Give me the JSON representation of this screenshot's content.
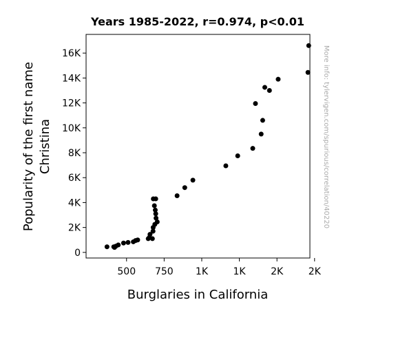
{
  "chart_data": {
    "type": "scatter",
    "title": "Years 1985-2022, r=0.974, p<0.01",
    "xlabel": "Burglaries in California",
    "ylabel_lines": [
      "Popularity of the first name",
      "Christina"
    ],
    "side_note": "More info: tylervigen.com/spurious/correlation/40220",
    "xlim": [
      231,
      1719
    ],
    "ylim": [
      -450,
      17500
    ],
    "x_ticks": [
      {
        "value": 500,
        "label": "500"
      },
      {
        "value": 750,
        "label": "750"
      },
      {
        "value": 1000,
        "label": "1K"
      },
      {
        "value": 1250,
        "label": "1K"
      },
      {
        "value": 1500,
        "label": "2K"
      },
      {
        "value": 1750,
        "label": "2K"
      }
    ],
    "y_ticks": [
      {
        "value": 0,
        "label": "0"
      },
      {
        "value": 2000,
        "label": "2K"
      },
      {
        "value": 4000,
        "label": "4K"
      },
      {
        "value": 6000,
        "label": "6K"
      },
      {
        "value": 8000,
        "label": "8K"
      },
      {
        "value": 10000,
        "label": "10K"
      },
      {
        "value": 12000,
        "label": "12K"
      },
      {
        "value": 14000,
        "label": "14K"
      },
      {
        "value": 16000,
        "label": "16K"
      }
    ],
    "points": [
      {
        "x": 1711,
        "y": 16600
      },
      {
        "x": 1706,
        "y": 14450
      },
      {
        "x": 1508,
        "y": 13900
      },
      {
        "x": 1419,
        "y": 13250
      },
      {
        "x": 1450,
        "y": 13000
      },
      {
        "x": 1357,
        "y": 11950
      },
      {
        "x": 1405,
        "y": 10600
      },
      {
        "x": 1395,
        "y": 9500
      },
      {
        "x": 1339,
        "y": 8350
      },
      {
        "x": 1239,
        "y": 7750
      },
      {
        "x": 1160,
        "y": 6950
      },
      {
        "x": 941,
        "y": 5800
      },
      {
        "x": 887,
        "y": 5200
      },
      {
        "x": 836,
        "y": 4550
      },
      {
        "x": 694,
        "y": 4300
      },
      {
        "x": 678,
        "y": 4300
      },
      {
        "x": 685,
        "y": 3750
      },
      {
        "x": 691,
        "y": 3400
      },
      {
        "x": 694,
        "y": 3100
      },
      {
        "x": 696,
        "y": 2750
      },
      {
        "x": 704,
        "y": 2450
      },
      {
        "x": 688,
        "y": 2250
      },
      {
        "x": 677,
        "y": 2000
      },
      {
        "x": 676,
        "y": 1700
      },
      {
        "x": 656,
        "y": 1450
      },
      {
        "x": 652,
        "y": 1200
      },
      {
        "x": 644,
        "y": 1100
      },
      {
        "x": 672,
        "y": 1100
      },
      {
        "x": 574,
        "y": 1000
      },
      {
        "x": 560,
        "y": 950
      },
      {
        "x": 545,
        "y": 850
      },
      {
        "x": 510,
        "y": 800
      },
      {
        "x": 480,
        "y": 750
      },
      {
        "x": 445,
        "y": 600
      },
      {
        "x": 429,
        "y": 500
      },
      {
        "x": 415,
        "y": 450
      },
      {
        "x": 370,
        "y": 450
      },
      {
        "x": 420,
        "y": 400
      }
    ]
  }
}
